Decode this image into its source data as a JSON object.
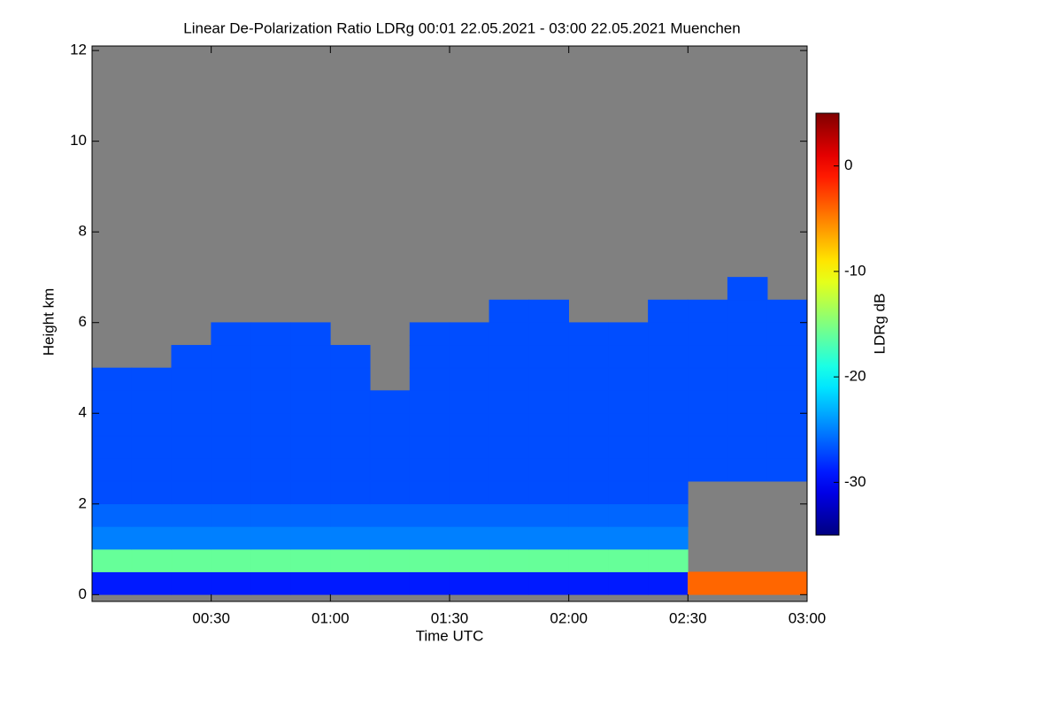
{
  "chart_data": {
    "type": "heatmap",
    "title": "Linear De-Polarization Ratio LDRg   00:01 22.05.2021 - 03:00 22.05.2021 Muenchen",
    "xlabel": "Time UTC",
    "ylabel": "Height km",
    "colorbar_label": "LDRg dB",
    "xlim": [
      0,
      180
    ],
    "ylim": [
      -0.15,
      12.1
    ],
    "zlim": [
      -35,
      5
    ],
    "xticks": [
      {
        "value": 30,
        "label": "00:30"
      },
      {
        "value": 60,
        "label": "01:00"
      },
      {
        "value": 90,
        "label": "01:30"
      },
      {
        "value": 120,
        "label": "02:00"
      },
      {
        "value": 150,
        "label": "02:30"
      },
      {
        "value": 180,
        "label": "03:00"
      }
    ],
    "yticks": [
      0,
      2,
      4,
      6,
      8,
      10,
      12
    ],
    "zticks": [
      0,
      -10,
      -20,
      -30
    ],
    "colormap": "jet",
    "nodata_color": "#808080",
    "x": [
      5,
      15,
      25,
      35,
      45,
      55,
      65,
      75,
      85,
      95,
      105,
      115,
      125,
      135,
      145,
      155,
      165,
      175
    ],
    "y": [
      0.25,
      0.75,
      1.25,
      1.75,
      2.25,
      2.75,
      3.25,
      3.75,
      4.25,
      4.75,
      5.25,
      5.75,
      6.25,
      6.75,
      7.25,
      7.75,
      8.25,
      8.75,
      9.25,
      9.75,
      10.25,
      10.75,
      11.25,
      11.75
    ],
    "z": [
      [
        -29,
        -29,
        -29,
        -29,
        -29,
        -29,
        -29,
        -29,
        -29,
        -29,
        -29,
        -29,
        -29,
        -29,
        -29,
        -4,
        -4,
        -4
      ],
      [
        -16,
        -16,
        -16,
        -16,
        -16,
        -16,
        -16,
        -16,
        -16,
        -16,
        -16,
        -16,
        -16,
        -16,
        -16,
        null,
        null,
        null
      ],
      [
        -25,
        -25,
        -25,
        -25,
        -25,
        -25,
        -25,
        -25,
        -25,
        -25,
        -25,
        -25,
        -25,
        -25,
        -25,
        null,
        null,
        null
      ],
      [
        -26,
        -26,
        -26,
        -26,
        -26,
        -26,
        -26,
        -26,
        -26,
        -26,
        -26,
        -26,
        -26,
        -26,
        -26,
        null,
        null,
        null
      ],
      [
        -27,
        -27,
        -27,
        -27,
        -27,
        -27,
        -27,
        -27,
        -27,
        -27,
        -27,
        -27,
        -27,
        -27,
        -27,
        null,
        null,
        null
      ],
      [
        -27,
        -27,
        -27,
        -27,
        -27,
        -27,
        -27,
        -27,
        -27,
        -27,
        -27,
        -27,
        -27,
        -27,
        -27,
        -27,
        -27,
        -27
      ],
      [
        -27,
        -27,
        -27,
        -27,
        -27,
        -27,
        -27,
        -27,
        -27,
        -27,
        -27,
        -27,
        -27,
        -27,
        -27,
        -27,
        -27,
        -27
      ],
      [
        -27,
        -27,
        -27,
        -27,
        -27,
        -27,
        -27,
        -27,
        -27,
        -27,
        -27,
        -27,
        -27,
        -27,
        -27,
        -27,
        -27,
        -27
      ],
      [
        -27,
        -27,
        -27,
        -27,
        -27,
        -27,
        -27,
        -27,
        -27,
        -27,
        -27,
        -27,
        -27,
        -27,
        -27,
        -27,
        -27,
        -27
      ],
      [
        -27,
        -27,
        -27,
        -27,
        -27,
        -27,
        -27,
        null,
        -27,
        -27,
        -27,
        -27,
        -27,
        -27,
        -27,
        -27,
        -27,
        -27
      ],
      [
        null,
        null,
        -27,
        -27,
        -27,
        -27,
        -27,
        null,
        -27,
        -27,
        -27,
        -27,
        -27,
        -27,
        -27,
        -27,
        -27,
        -27
      ],
      [
        null,
        null,
        null,
        -27,
        -27,
        -27,
        null,
        null,
        -27,
        -27,
        -27,
        -27,
        -27,
        -27,
        -27,
        -27,
        -27,
        -27
      ],
      [
        null,
        null,
        null,
        null,
        null,
        null,
        null,
        null,
        null,
        null,
        -27,
        -27,
        null,
        null,
        -27,
        -27,
        -27,
        -27
      ],
      [
        null,
        null,
        null,
        null,
        null,
        null,
        null,
        null,
        null,
        null,
        null,
        null,
        null,
        null,
        null,
        null,
        -27,
        null
      ],
      [
        null,
        null,
        null,
        null,
        null,
        null,
        null,
        null,
        null,
        null,
        null,
        null,
        null,
        null,
        null,
        null,
        null,
        null
      ],
      [
        null,
        null,
        null,
        null,
        null,
        null,
        null,
        null,
        null,
        null,
        null,
        null,
        null,
        null,
        null,
        null,
        null,
        null
      ],
      [
        null,
        null,
        null,
        null,
        null,
        null,
        null,
        null,
        null,
        null,
        null,
        null,
        null,
        null,
        null,
        null,
        null,
        null
      ],
      [
        null,
        null,
        null,
        null,
        null,
        null,
        null,
        null,
        null,
        null,
        null,
        null,
        null,
        null,
        null,
        null,
        null,
        null
      ],
      [
        null,
        null,
        null,
        null,
        null,
        null,
        null,
        null,
        null,
        null,
        null,
        null,
        null,
        null,
        null,
        null,
        null,
        null
      ],
      [
        null,
        null,
        null,
        null,
        null,
        null,
        null,
        null,
        null,
        null,
        null,
        null,
        null,
        null,
        null,
        null,
        null,
        null
      ],
      [
        null,
        null,
        null,
        null,
        null,
        null,
        null,
        null,
        null,
        null,
        null,
        null,
        null,
        null,
        null,
        null,
        null,
        null
      ],
      [
        null,
        null,
        null,
        null,
        null,
        null,
        null,
        null,
        null,
        null,
        null,
        null,
        null,
        null,
        null,
        null,
        null,
        null
      ],
      [
        null,
        null,
        null,
        null,
        null,
        null,
        null,
        null,
        null,
        null,
        null,
        null,
        null,
        null,
        null,
        null,
        null,
        null
      ],
      [
        null,
        null,
        null,
        null,
        null,
        null,
        null,
        null,
        null,
        null,
        null,
        null,
        null,
        null,
        null,
        null,
        null,
        null
      ]
    ]
  }
}
